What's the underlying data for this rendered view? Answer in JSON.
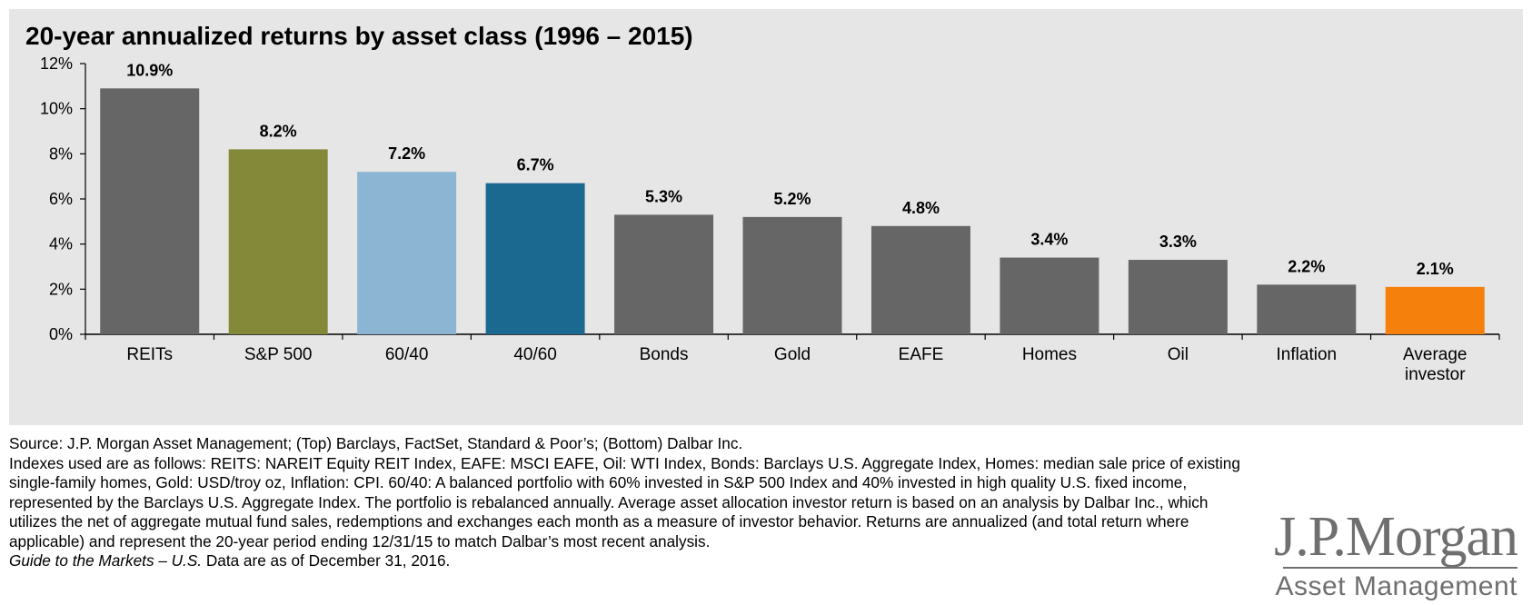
{
  "chart_data": {
    "type": "bar",
    "title": "20-year annualized returns by asset class (1996 – 2015)",
    "xlabel": "",
    "ylabel": "",
    "ylim": [
      0,
      12
    ],
    "yticks": [
      "0%",
      "2%",
      "4%",
      "6%",
      "8%",
      "10%",
      "12%"
    ],
    "categories": [
      "REITs",
      "S&P 500",
      "60/40",
      "40/60",
      "Bonds",
      "Gold",
      "EAFE",
      "Homes",
      "Oil",
      "Inflation",
      "Average investor"
    ],
    "values": [
      10.9,
      8.2,
      7.2,
      6.7,
      5.3,
      5.2,
      4.8,
      3.4,
      3.3,
      2.2,
      2.1
    ],
    "data_labels": [
      "10.9%",
      "8.2%",
      "7.2%",
      "6.7%",
      "5.3%",
      "5.2%",
      "4.8%",
      "3.4%",
      "3.3%",
      "2.2%",
      "2.1%"
    ],
    "colors": [
      "#666666",
      "#84893a",
      "#8bb5d2",
      "#1b6890",
      "#666666",
      "#666666",
      "#666666",
      "#666666",
      "#666666",
      "#666666",
      "#f5800c"
    ],
    "grid": false,
    "legend": "none",
    "background": "#e6e6e6"
  },
  "notes": {
    "source": "Source: J.P. Morgan Asset Management; (Top) Barclays, FactSet, Standard & Poor’s; (Bottom) Dalbar Inc.",
    "indexes": "Indexes used are as follows: REITS: NAREIT Equity REIT Index, EAFE: MSCI EAFE, Oil: WTI Index, Bonds: Barclays U.S. Aggregate Index, Homes: median sale price of existing single-family homes, Gold: USD/troy oz, Inflation: CPI. 60/40: A balanced portfolio with 60% invested in S&P 500 Index and 40% invested in high quality U.S. fixed income, represented by the Barclays U.S. Aggregate Index. The portfolio is rebalanced annually. Average asset allocation investor return is based on an analysis by Dalbar Inc., which utilizes the net of aggregate mutual fund sales, redemptions and exchanges each month as a measure of investor behavior. Returns are annualized (and total return where applicable) and represent the 20-year period ending 12/31/15 to match Dalbar’s most recent analysis.",
    "guide_italic": "Guide to the Markets – U.S.",
    "guide_date": " Data are as of December 31, 2016."
  },
  "logo": {
    "name": "J.P.Morgan",
    "subtitle": "Asset Management"
  }
}
